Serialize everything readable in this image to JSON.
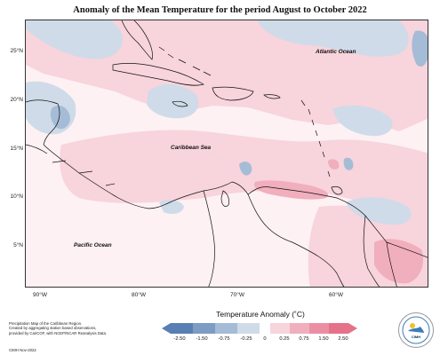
{
  "title": "Anomaly of the Mean Temperature for the period August to October 2022",
  "map": {
    "lon_range": [
      -93,
      -52
    ],
    "lat_range": [
      0.5,
      28
    ],
    "lat_ticks": [
      "25°N",
      "20°N",
      "15°N",
      "10°N",
      "5°N"
    ],
    "lon_ticks": [
      "90°W",
      "80°W",
      "70°W",
      "60°W"
    ],
    "ocean_labels": {
      "atlantic": "Atlantic Ocean",
      "caribbean": "Caribbean Sea",
      "pacific": "Pacific Ocean"
    },
    "anomaly_colors": {
      "neg_2_50": "#5a7fb4",
      "neg_1_50": "#7d9cc4",
      "neg_0_75": "#a5bcd6",
      "neg_0_25": "#cfdbe8",
      "zero": "#fdf1f3",
      "pos_0_25": "#f8d4dc",
      "pos_0_75": "#f1aebd",
      "pos_1_50": "#ec8ea3"
    }
  },
  "legend": {
    "title": "Temperature Anomaly (˚C)",
    "ticks": [
      "-2.50",
      "-1.50",
      "-0.75",
      "-0.25",
      "0",
      "0.25",
      "0.75",
      "1.50",
      "2.50"
    ],
    "colors": [
      "#5a7fb4",
      "#7d9cc4",
      "#a5bcd6",
      "#cfdbe8",
      "#f8d4dc",
      "#f1aebd",
      "#ec8ea3",
      "#e57289"
    ]
  },
  "footnote": {
    "line1": "Precipitation Map of the Caribbean Region.",
    "line2": "Created by aggregating station based observations,",
    "line3": "provided by CariCOF, with NCEP/NCAR Reanalysis Data.",
    "credit": "CIMH Nov-2022"
  },
  "logo": {
    "text": "CIMH"
  }
}
